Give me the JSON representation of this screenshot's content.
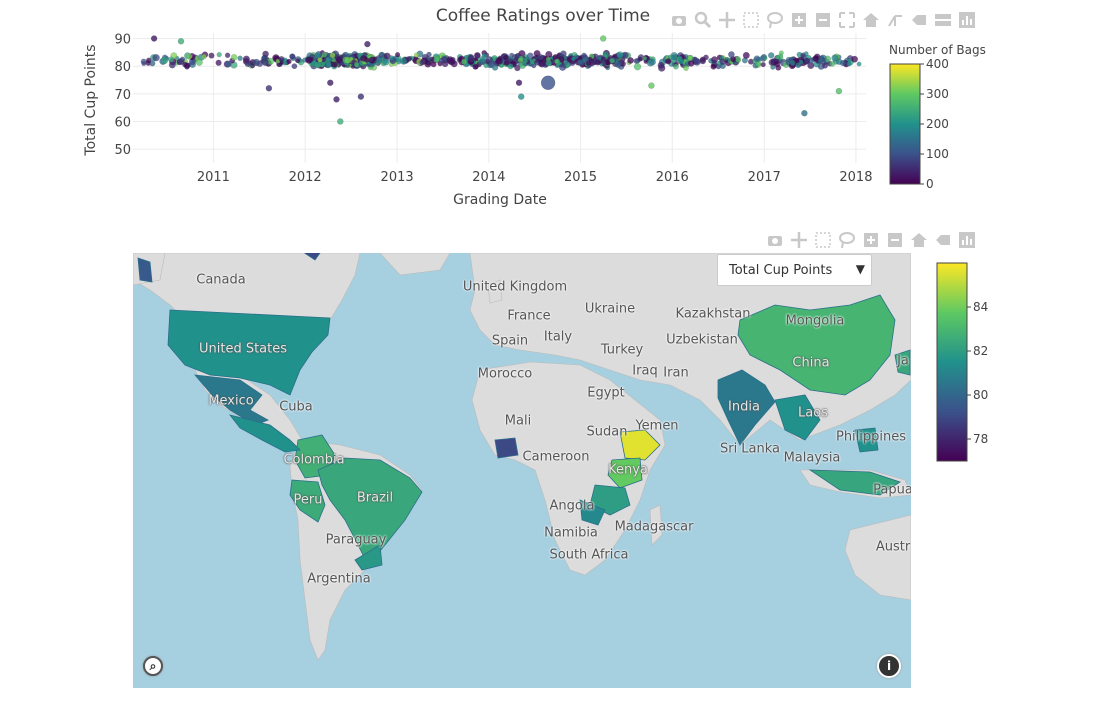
{
  "chart_data": [
    {
      "type": "scatter",
      "title": "Coffee Ratings over Time",
      "xlabel": "Grading Date",
      "ylabel": "Total Cup Points",
      "xlim": [
        "2010-02-15",
        "2018-02-10"
      ],
      "ylim": [
        45,
        92
      ],
      "x_ticks": [
        "2011",
        "2012",
        "2013",
        "2014",
        "2015",
        "2016",
        "2017",
        "2018"
      ],
      "y_ticks": [
        50,
        60,
        70,
        80,
        90
      ],
      "grid": true,
      "colorbar": {
        "title": "Number of Bags",
        "min": 0,
        "max": 400,
        "ticks": [
          0,
          100,
          200,
          300,
          400
        ]
      },
      "main_band": {
        "x_start": "2010-03-20",
        "x_end": "2018-01-20",
        "y_center": 82.0,
        "y_spread": 2.8
      },
      "notable_points": [
        {
          "x": "2012-05-20",
          "y": 60,
          "bags": 250
        },
        {
          "x": "2017-06-10",
          "y": 63,
          "bags": 150
        },
        {
          "x": "2014-08-25",
          "y": 74,
          "bags": 100
        },
        {
          "x": "2012-04-10",
          "y": 74,
          "bags": 40
        },
        {
          "x": "2012-05-05",
          "y": 68,
          "bags": 40
        },
        {
          "x": "2012-08-10",
          "y": 69,
          "bags": 60
        },
        {
          "x": "2011-08-10",
          "y": 72,
          "bags": 60
        },
        {
          "x": "2014-05-10",
          "y": 69,
          "bags": 200
        },
        {
          "x": "2015-04-01",
          "y": 90,
          "bags": 300
        },
        {
          "x": "2010-05-10",
          "y": 90,
          "bags": 30
        },
        {
          "x": "2010-08-25",
          "y": 89,
          "bags": 250
        },
        {
          "x": "2017-10-25",
          "y": 71,
          "bags": 280
        },
        {
          "x": "2015-10-10",
          "y": 73,
          "bags": 300
        },
        {
          "x": "2014-05-01",
          "y": 74,
          "bags": 30
        },
        {
          "x": "2012-09-05",
          "y": 88,
          "bags": 40
        }
      ]
    },
    {
      "type": "heatmap",
      "subtype": "choropleth-map",
      "metric": "Total Cup Points",
      "colorbar": {
        "min": 77,
        "max": 86,
        "ticks": [
          78,
          80,
          82,
          84
        ]
      },
      "countries": [
        {
          "name": "United States",
          "value": 81.5
        },
        {
          "name": "Mexico",
          "value": 80.6
        },
        {
          "name": "Colombia",
          "value": 82.7
        },
        {
          "name": "Brazil",
          "value": 82.4
        },
        {
          "name": "Peru",
          "value": 82.5
        },
        {
          "name": "Ethiopia",
          "value": 85.6
        },
        {
          "name": "Kenya",
          "value": 83.8
        },
        {
          "name": "China",
          "value": 82.9
        },
        {
          "name": "India",
          "value": 80.6
        }
      ]
    }
  ],
  "map_labels": [
    "Canada",
    "United Kingdom",
    "France",
    "Ukraine",
    "Kazakhstan",
    "Mongolia",
    "Spain",
    "Italy",
    "Turkey",
    "Uzbekistan",
    "United States",
    "China",
    "Morocco",
    "Iraq",
    "Iran",
    "Egypt",
    "Cuba",
    "Mexico",
    "India",
    "Yemen",
    "Mali",
    "Sudan",
    "Laos",
    "Philippines",
    "Colombia",
    "Cameroon",
    "Sri Lanka",
    "Kenya",
    "Malaysia",
    "Peru",
    "Brazil",
    "Papua",
    "Angola",
    "Madagascar",
    "Namibia",
    "South Africa",
    "Paraguay",
    "Argentina",
    "Austr",
    "Ja"
  ],
  "dropdown": {
    "selected": "Total Cup Points"
  },
  "colors": {
    "band_low": "#440154",
    "band_mid": "#21918c",
    "band_high": "#fde725",
    "water": "#a6cfe0",
    "land": "#dcdcdc"
  },
  "modebar_icons": [
    "camera-icon",
    "zoom-icon",
    "pan-icon",
    "box-select-icon",
    "lasso-icon",
    "zoom-in-icon",
    "zoom-out-icon",
    "autoscale-icon",
    "reset-axes-icon",
    "spike-lines-icon",
    "hover-closest-icon",
    "hover-compare-icon",
    "plotly-logo-icon"
  ],
  "map_modebar_icons": [
    "camera-icon",
    "pan-icon",
    "box-select-icon",
    "lasso-icon",
    "zoom-in-icon",
    "zoom-out-icon",
    "reset-view-icon",
    "hover-icon",
    "plotly-logo-icon"
  ]
}
